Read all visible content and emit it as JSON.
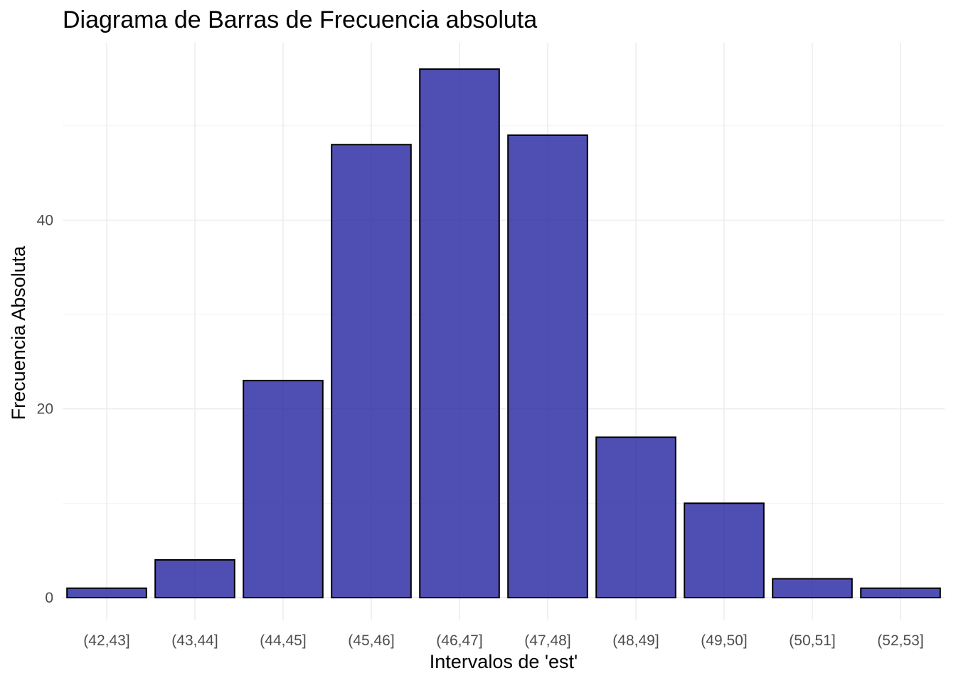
{
  "chart_data": {
    "type": "bar",
    "title": "Diagrama de Barras de Frecuencia absoluta",
    "xlabel": "Intervalos de 'est'",
    "ylabel": "Frecuencia Absoluta",
    "categories": [
      "(42,43]",
      "(43,44]",
      "(44,45]",
      "(45,46]",
      "(46,47]",
      "(47,48]",
      "(48,49]",
      "(49,50]",
      "(50,51]",
      "(52,53]"
    ],
    "values": [
      1,
      4,
      23,
      48,
      56,
      49,
      17,
      10,
      2,
      1
    ],
    "ylim": [
      0,
      58.8
    ],
    "yticks": [
      0,
      20,
      40
    ],
    "grid": true,
    "bar_color": "#2323a0",
    "bar_opacity": 0.8,
    "bar_border_color": "#000000",
    "legend": "none"
  }
}
